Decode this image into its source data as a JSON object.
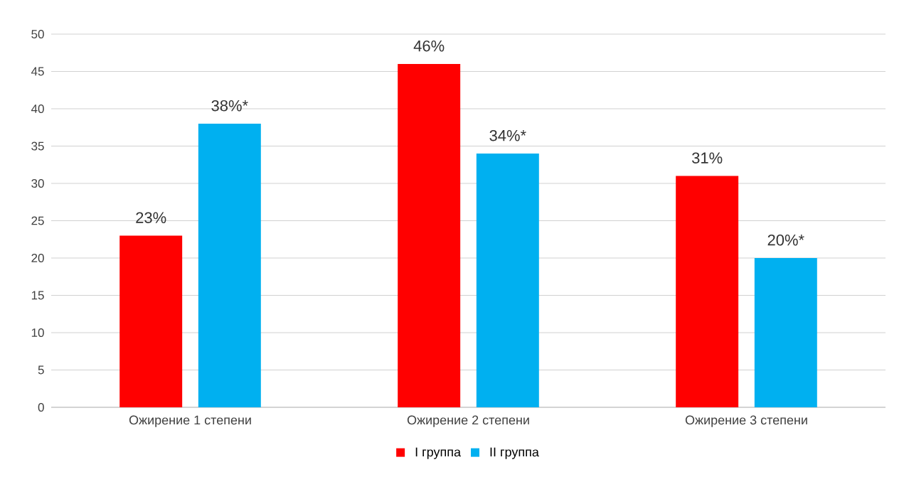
{
  "chart_data": {
    "type": "bar",
    "categories": [
      "Ожирение 1 степени",
      "Ожирение 2 степени",
      "Ожирение 3 степени"
    ],
    "series": [
      {
        "name": "I группа",
        "color": "#ff0000",
        "values": [
          23,
          46,
          31
        ],
        "value_labels": [
          "23%",
          "46%",
          "31%"
        ]
      },
      {
        "name": "II группа",
        "color": "#00b0f0",
        "values": [
          38,
          34,
          20
        ],
        "value_labels": [
          "38%*",
          "34%*",
          "20%*"
        ]
      }
    ],
    "ylim": [
      0,
      50
    ],
    "yticks": [
      0,
      5,
      10,
      15,
      20,
      25,
      30,
      35,
      40,
      45,
      50
    ],
    "grid": "y",
    "legend": "bottom"
  }
}
